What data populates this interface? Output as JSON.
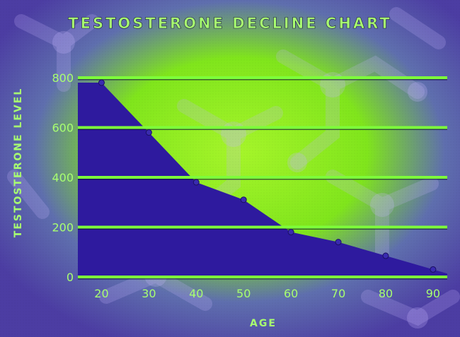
{
  "chart_data": {
    "type": "area",
    "title": "TESTOSTERONE DECLINE CHART",
    "xlabel": "AGE",
    "ylabel": "TESTOSTERONE LEVEL",
    "x": [
      20,
      30,
      40,
      50,
      60,
      70,
      80,
      90
    ],
    "series": [
      {
        "values": [
          780,
          580,
          380,
          310,
          180,
          140,
          85,
          30
        ]
      }
    ],
    "x_ticks": [
      "20",
      "30",
      "40",
      "50",
      "60",
      "70",
      "80",
      "90"
    ],
    "y_ticks": [
      "0",
      "200",
      "400",
      "600",
      "800"
    ],
    "xlim": [
      15,
      93
    ],
    "ylim": [
      0,
      800
    ],
    "grid": true,
    "legend": "none",
    "colors": {
      "area_fill": "#2e1a9e",
      "gridline": "#7dff3a",
      "text": "#a8ff70",
      "background_glow": "#8cf020",
      "background_frame": "#5a48b0"
    }
  }
}
